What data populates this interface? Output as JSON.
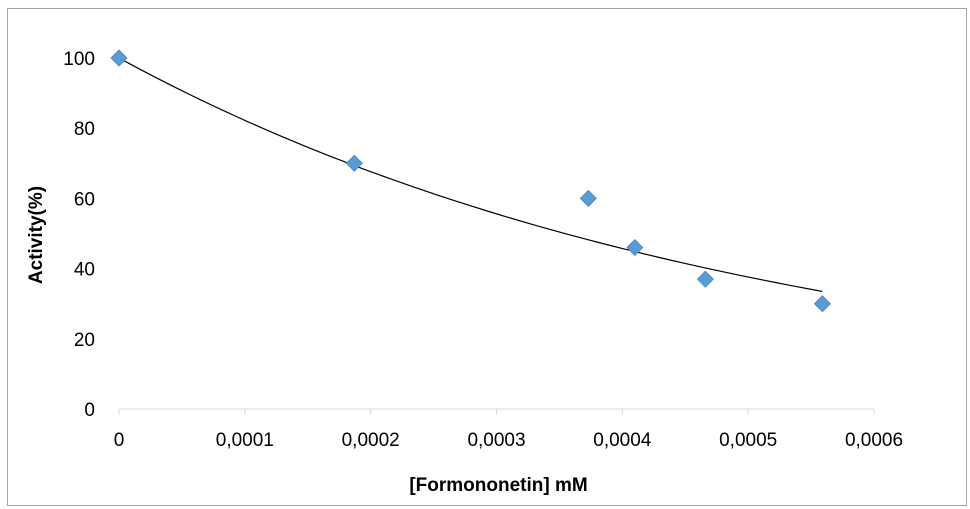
{
  "chart_data": {
    "type": "scatter",
    "title": "",
    "xlabel": "[Formononetin] mM",
    "ylabel": "Activity(%)",
    "xlim": [
      0,
      0.0006
    ],
    "ylim": [
      0,
      100
    ],
    "x_ticks": [
      0,
      0.0001,
      0.0002,
      0.0003,
      0.0004,
      0.0005,
      0.0006
    ],
    "x_tick_labels": [
      "0",
      "0,0001",
      "0,0002",
      "0,0003",
      "0,0004",
      "0,0005",
      "0,0006"
    ],
    "y_ticks": [
      0,
      20,
      40,
      60,
      80,
      100
    ],
    "y_tick_labels": [
      "0",
      "20",
      "40",
      "60",
      "80",
      "100"
    ],
    "grid": false,
    "legend": "none",
    "marker": "diamond",
    "marker_color": "#5b9bd5",
    "trendline_color": "#000000",
    "series": [
      {
        "x": [
          0,
          0.000187,
          0.000373,
          0.00041,
          0.000466,
          0.000559
        ],
        "y": [
          100,
          70,
          60,
          46,
          37,
          30
        ]
      }
    ],
    "trendline": {
      "type": "exponential",
      "x_range": [
        0,
        0.000559
      ],
      "y_start": 100,
      "y_end": 33.5
    }
  }
}
